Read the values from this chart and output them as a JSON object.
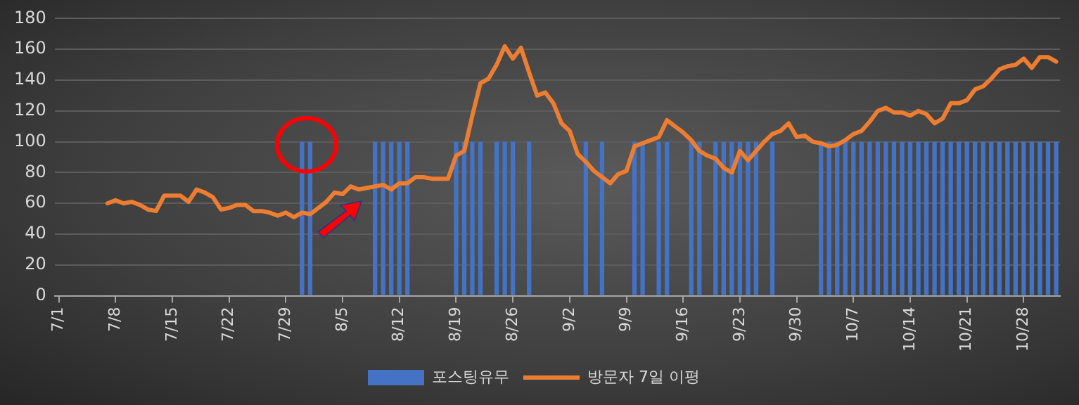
{
  "chart_data": {
    "type": "bar",
    "categories": [
      "7/1",
      null,
      null,
      null,
      null,
      null,
      null,
      "7/8",
      null,
      null,
      null,
      null,
      null,
      null,
      "7/15",
      null,
      null,
      null,
      null,
      null,
      null,
      "7/22",
      null,
      null,
      null,
      null,
      null,
      null,
      "7/29",
      null,
      null,
      null,
      null,
      null,
      null,
      "8/5",
      null,
      null,
      null,
      null,
      null,
      null,
      "8/12",
      null,
      null,
      null,
      null,
      null,
      null,
      "8/19",
      null,
      null,
      null,
      null,
      null,
      null,
      "8/26",
      null,
      null,
      null,
      null,
      null,
      null,
      "9/2",
      null,
      null,
      null,
      null,
      null,
      null,
      "9/9",
      null,
      null,
      null,
      null,
      null,
      null,
      "9/16",
      null,
      null,
      null,
      null,
      null,
      null,
      "9/23",
      null,
      null,
      null,
      null,
      null,
      null,
      "9/30",
      null,
      null,
      null,
      null,
      null,
      null,
      "10/7",
      null,
      null,
      null,
      null,
      null,
      null,
      "10/14",
      null,
      null,
      null,
      null,
      null,
      null,
      "10/21",
      null,
      null,
      null,
      null,
      null,
      null,
      "10/28",
      null,
      null,
      null,
      null
    ],
    "series": [
      {
        "name": "포스팅유무",
        "color": "#4472c4",
        "values": [
          null,
          null,
          null,
          null,
          null,
          null,
          null,
          null,
          null,
          null,
          null,
          null,
          null,
          null,
          null,
          null,
          null,
          null,
          null,
          null,
          null,
          null,
          null,
          null,
          null,
          null,
          null,
          null,
          null,
          null,
          100,
          100,
          null,
          null,
          null,
          null,
          null,
          null,
          null,
          100,
          100,
          100,
          100,
          100,
          null,
          null,
          null,
          null,
          null,
          100,
          100,
          100,
          100,
          null,
          100,
          100,
          100,
          null,
          100,
          null,
          null,
          null,
          null,
          null,
          null,
          100,
          null,
          100,
          null,
          null,
          null,
          100,
          100,
          null,
          100,
          100,
          null,
          null,
          100,
          100,
          null,
          100,
          100,
          100,
          100,
          100,
          100,
          null,
          100,
          null,
          null,
          null,
          null,
          null,
          100,
          100,
          100,
          100,
          100,
          100,
          100,
          100,
          100,
          100,
          100,
          100,
          100,
          100,
          100,
          100,
          100,
          100,
          100,
          100,
          100,
          100,
          100,
          100,
          100,
          100,
          100,
          100,
          100,
          100
        ]
      },
      {
        "name": "방문자 7일 이평",
        "type": "line",
        "color": "#ed7d31",
        "values": [
          null,
          null,
          null,
          null,
          null,
          null,
          60,
          62,
          60,
          61,
          59,
          56,
          55,
          65,
          65,
          65,
          61,
          69,
          67,
          64,
          56,
          57,
          59,
          59,
          55,
          55,
          54,
          52,
          54,
          51,
          54,
          53,
          57,
          61,
          67,
          66,
          71,
          69,
          70,
          71,
          72,
          69,
          73,
          73,
          77,
          77,
          76,
          76,
          76,
          91,
          94,
          117,
          138,
          141,
          150,
          162,
          154,
          161,
          145,
          130,
          132,
          125,
          112,
          107,
          92,
          87,
          81,
          77,
          73,
          79,
          81,
          97,
          99,
          101,
          103,
          114,
          110,
          106,
          101,
          94,
          91,
          89,
          83,
          80,
          94,
          88,
          94,
          100,
          105,
          107,
          112,
          103,
          104,
          100,
          99,
          97,
          98,
          101,
          105,
          107,
          113,
          120,
          122,
          119,
          119,
          117,
          120,
          118,
          112,
          115,
          125,
          125,
          127,
          134,
          136,
          141,
          147,
          149,
          150,
          154,
          148,
          155,
          155,
          152
        ]
      }
    ],
    "ylim": [
      0,
      180
    ],
    "yticks": [
      0,
      20,
      40,
      60,
      80,
      100,
      120,
      140,
      160,
      180
    ],
    "grid": "y",
    "legend": "bottom"
  }
}
